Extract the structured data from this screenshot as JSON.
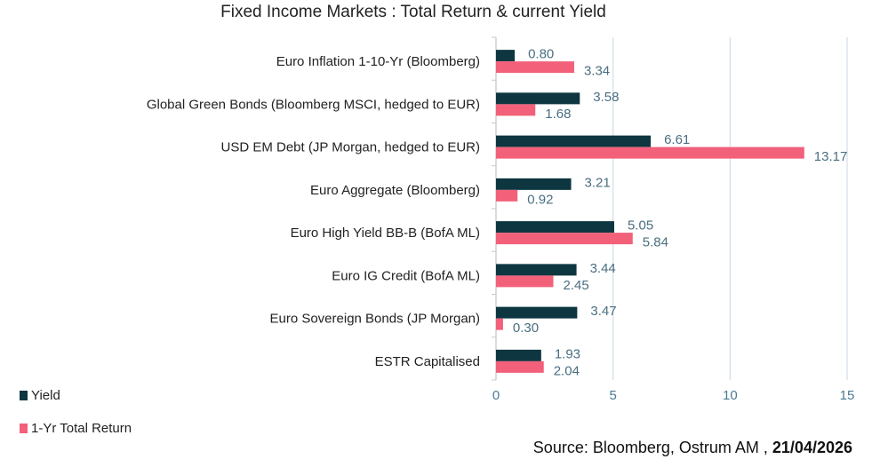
{
  "chart_data": {
    "type": "bar",
    "orientation": "horizontal",
    "title": "Fixed Income Markets : Total Return & current Yield",
    "categories": [
      "Euro Inflation 1-10-Yr (Bloomberg)",
      "Global Green Bonds (Bloomberg MSCI, hedged to EUR)",
      "USD EM Debt (JP Morgan, hedged to EUR)",
      "Euro Aggregate (Bloomberg)",
      "Euro High Yield BB-B (BofA ML)",
      "Euro IG Credit (BofA ML)",
      "Euro Sovereign Bonds (JP Morgan)",
      "ESTR Capitalised"
    ],
    "series": [
      {
        "name": "Yield",
        "color": "#0d3640",
        "values": [
          0.8,
          3.58,
          6.61,
          3.21,
          5.05,
          3.44,
          3.47,
          1.93
        ],
        "labels": [
          "0.80",
          "3.58",
          "6.61",
          "3.21",
          "5.05",
          "3.44",
          "3.47",
          "1.93"
        ]
      },
      {
        "name": "1-Yr Total Return",
        "color": "#f2607a",
        "values": [
          3.34,
          1.68,
          13.17,
          0.92,
          5.84,
          2.45,
          0.3,
          2.04
        ],
        "labels": [
          "3.34",
          "1.68",
          "13.17",
          "0.92",
          "5.84",
          "2.45",
          "0.30",
          "2.04"
        ]
      }
    ],
    "xlim": [
      0,
      15
    ],
    "xticks": [
      "0",
      "5",
      "10",
      "15"
    ],
    "grid": true,
    "legend": "bottom-left"
  },
  "source": {
    "text": "Source: Bloomberg, Ostrum AM",
    "date": "21/04/2026"
  }
}
